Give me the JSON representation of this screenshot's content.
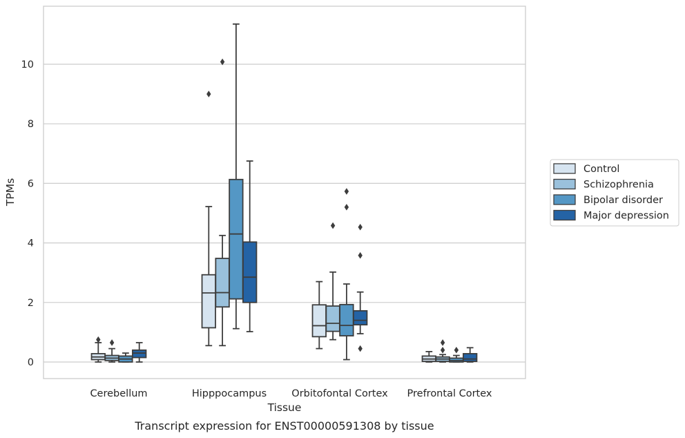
{
  "caption": "Transcript expression for ENST00000591308 by tissue",
  "chart_data": {
    "type": "box",
    "title": "",
    "xlabel": "Tissue",
    "ylabel": "TPMs",
    "ylim": [
      -0.55,
      11.9
    ],
    "yticks": [
      0,
      2,
      4,
      6,
      8,
      10
    ],
    "grid": "horizontal",
    "legend_position": "outside-right",
    "categories": [
      "Cerebellum",
      "Hipppocampus",
      "Orbitofontal Cortex",
      "Prefrontal Cortex"
    ],
    "series": [
      {
        "name": "Control",
        "color": "#d6e4f0",
        "boxes": [
          {
            "whislo": 0.0,
            "q1": 0.08,
            "med": 0.17,
            "q3": 0.28,
            "whishi": 0.65,
            "fliers": [
              0.75
            ]
          },
          {
            "whislo": 0.55,
            "q1": 1.15,
            "med": 2.32,
            "q3": 2.93,
            "whishi": 5.22,
            "fliers": [
              9.0
            ]
          },
          {
            "whislo": 0.45,
            "q1": 0.85,
            "med": 1.22,
            "q3": 1.92,
            "whishi": 2.7,
            "fliers": []
          },
          {
            "whislo": 0.0,
            "q1": 0.02,
            "med": 0.1,
            "q3": 0.2,
            "whishi": 0.35,
            "fliers": []
          }
        ]
      },
      {
        "name": "Schizophrenia",
        "color": "#9ac1dc",
        "boxes": [
          {
            "whislo": 0.0,
            "q1": 0.05,
            "med": 0.13,
            "q3": 0.22,
            "whishi": 0.45,
            "fliers": [
              0.65
            ]
          },
          {
            "whislo": 0.55,
            "q1": 1.85,
            "med": 2.33,
            "q3": 3.48,
            "whishi": 4.25,
            "fliers": [
              10.08
            ]
          },
          {
            "whislo": 0.75,
            "q1": 1.03,
            "med": 1.3,
            "q3": 1.88,
            "whishi": 3.02,
            "fliers": [
              4.58
            ]
          },
          {
            "whislo": 0.0,
            "q1": 0.02,
            "med": 0.1,
            "q3": 0.17,
            "whishi": 0.25,
            "fliers": [
              0.4,
              0.65
            ]
          }
        ]
      },
      {
        "name": "Bipolar disorder",
        "color": "#5497c5",
        "boxes": [
          {
            "whislo": 0.0,
            "q1": 0.0,
            "med": 0.1,
            "q3": 0.2,
            "whishi": 0.3,
            "fliers": []
          },
          {
            "whislo": 1.12,
            "q1": 2.12,
            "med": 4.3,
            "q3": 6.13,
            "whishi": 11.35,
            "fliers": []
          },
          {
            "whislo": 0.08,
            "q1": 0.88,
            "med": 1.23,
            "q3": 1.93,
            "whishi": 2.62,
            "fliers": [
              5.2,
              5.73
            ]
          },
          {
            "whislo": 0.0,
            "q1": 0.0,
            "med": 0.05,
            "q3": 0.13,
            "whishi": 0.22,
            "fliers": [
              0.4
            ]
          }
        ]
      },
      {
        "name": "Major depression",
        "color": "#2463a5",
        "boxes": [
          {
            "whislo": 0.0,
            "q1": 0.15,
            "med": 0.3,
            "q3": 0.4,
            "whishi": 0.65,
            "fliers": []
          },
          {
            "whislo": 1.02,
            "q1": 2.0,
            "med": 2.85,
            "q3": 4.03,
            "whishi": 6.75,
            "fliers": []
          },
          {
            "whislo": 0.95,
            "q1": 1.25,
            "med": 1.4,
            "q3": 1.72,
            "whishi": 2.35,
            "fliers": [
              0.45,
              3.58,
              4.53
            ]
          },
          {
            "whislo": 0.0,
            "q1": 0.02,
            "med": 0.1,
            "q3": 0.28,
            "whishi": 0.48,
            "fliers": []
          }
        ]
      }
    ]
  }
}
